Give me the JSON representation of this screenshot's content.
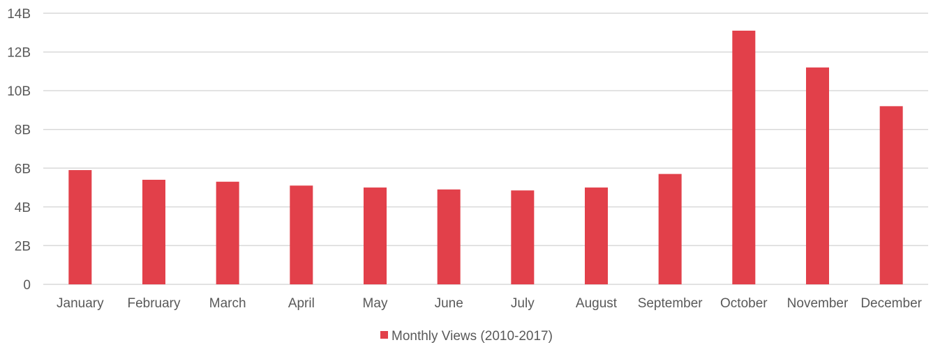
{
  "chart_data": {
    "type": "bar",
    "categories": [
      "January",
      "February",
      "March",
      "April",
      "May",
      "June",
      "July",
      "August",
      "September",
      "October",
      "November",
      "December"
    ],
    "series": [
      {
        "name": "Monthly Views (2010-2017)",
        "color": "#e2404a",
        "values": [
          5.9,
          5.4,
          5.3,
          5.1,
          5.0,
          4.9,
          4.85,
          5.0,
          5.7,
          13.1,
          11.2,
          9.2
        ]
      }
    ],
    "unit": "billions",
    "ylim": [
      0,
      14
    ],
    "yticks": [
      {
        "value": 0,
        "label": "0"
      },
      {
        "value": 2,
        "label": "2B"
      },
      {
        "value": 4,
        "label": "4B"
      },
      {
        "value": 6,
        "label": "6B"
      },
      {
        "value": 8,
        "label": "8B"
      },
      {
        "value": 10,
        "label": "10B"
      },
      {
        "value": 12,
        "label": "12B"
      },
      {
        "value": 14,
        "label": "14B"
      }
    ],
    "grid": true,
    "gridColor": "#d9d9d9",
    "legend": "bottom",
    "title": "",
    "xlabel": "",
    "ylabel": ""
  }
}
